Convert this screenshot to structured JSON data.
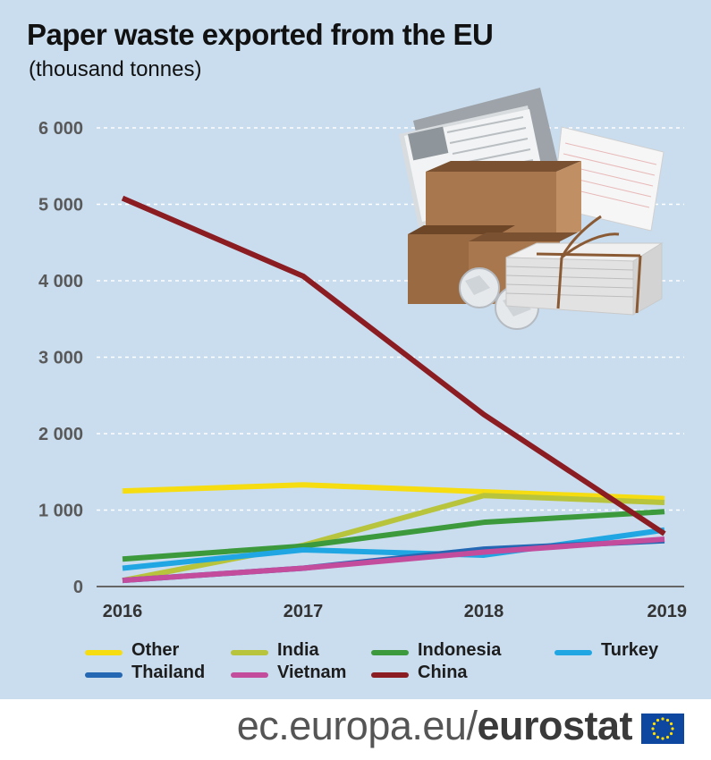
{
  "title": "Paper waste exported from the EU",
  "subtitle": "(thousand tonnes)",
  "chart_data": {
    "type": "line",
    "x": [
      "2016",
      "2017",
      "2018",
      "2019"
    ],
    "ylim": [
      0,
      6000
    ],
    "yticks": [
      0,
      1000,
      2000,
      3000,
      4000,
      5000,
      6000
    ],
    "ytick_labels": [
      "0",
      "1 000",
      "2 000",
      "3 000",
      "4 000",
      "5 000",
      "6 000"
    ],
    "grid": true,
    "legend_position": "bottom",
    "series": [
      {
        "name": "Other",
        "color": "#f5dd12",
        "values": [
          1250,
          1330,
          1240,
          1150
        ]
      },
      {
        "name": "India",
        "color": "#b7c43c",
        "values": [
          80,
          540,
          1190,
          1100
        ]
      },
      {
        "name": "Indonesia",
        "color": "#3d9a3c",
        "values": [
          360,
          530,
          840,
          980
        ]
      },
      {
        "name": "Turkey",
        "color": "#20a6e2",
        "values": [
          240,
          480,
          410,
          740
        ]
      },
      {
        "name": "Thailand",
        "color": "#2467b3",
        "values": [
          80,
          240,
          490,
          600
        ]
      },
      {
        "name": "Vietnam",
        "color": "#c44c9c",
        "values": [
          80,
          240,
          450,
          620
        ]
      },
      {
        "name": "China",
        "color": "#8a1c22",
        "values": [
          5080,
          4060,
          2250,
          690
        ]
      }
    ]
  },
  "footer": {
    "site": "ec.europa.eu/",
    "brand": "eurostat"
  }
}
